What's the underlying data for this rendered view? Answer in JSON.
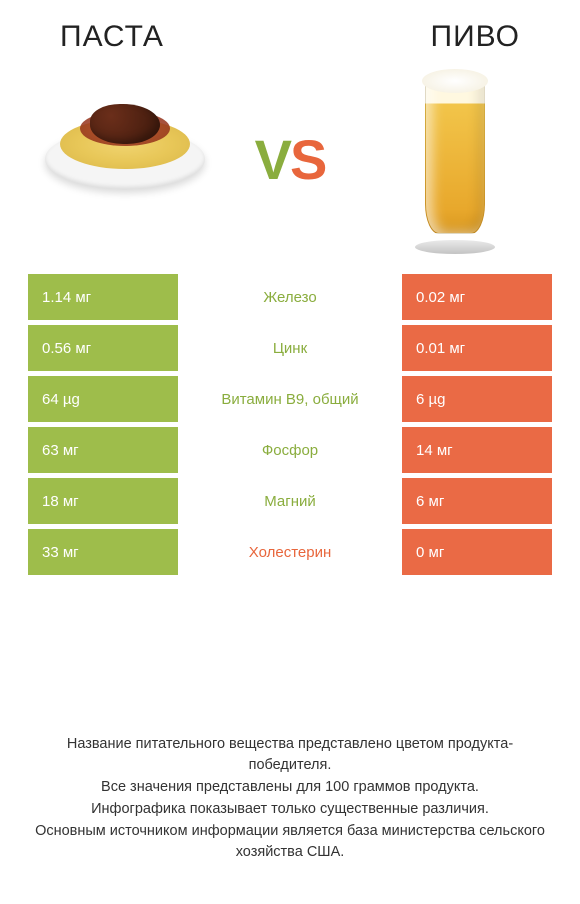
{
  "colors": {
    "left_accent": "#9ebd4b",
    "right_accent": "#ea6a45",
    "vs_left": "#8aad3e",
    "vs_right": "#e8663c",
    "background": "#ffffff",
    "text": "#222222"
  },
  "header": {
    "left_title": "ПАСТА",
    "right_title": "ПИВО",
    "vs_v": "V",
    "vs_s": "S"
  },
  "comparison": {
    "rows": [
      {
        "left": "1.14 мг",
        "label": "Железо",
        "right": "0.02 мг",
        "winner": "left"
      },
      {
        "left": "0.56 мг",
        "label": "Цинк",
        "right": "0.01 мг",
        "winner": "left"
      },
      {
        "left": "64 µg",
        "label": "Витамин B9, общий",
        "right": "6 µg",
        "winner": "left"
      },
      {
        "left": "63 мг",
        "label": "Фосфор",
        "right": "14 мг",
        "winner": "left"
      },
      {
        "left": "18 мг",
        "label": "Магний",
        "right": "6 мг",
        "winner": "left"
      },
      {
        "left": "33 мг",
        "label": "Холестерин",
        "right": "0 мг",
        "winner": "right"
      }
    ]
  },
  "notes": {
    "line1": "Название питательного вещества представлено цветом продукта-победителя.",
    "line2": "Все значения представлены для 100 граммов продукта.",
    "line3": "Инфографика показывает только существенные различия.",
    "line4": "Основным источником информации является база министерства сельского хозяйства США."
  }
}
